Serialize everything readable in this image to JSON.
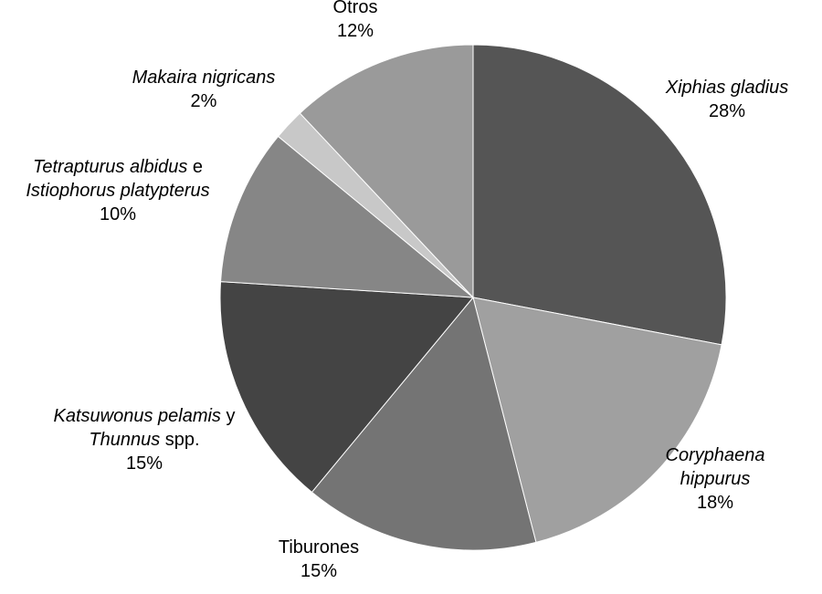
{
  "chart_data": {
    "type": "pie",
    "title": "",
    "start_angle_deg": 0,
    "direction": "clockwise",
    "slices": [
      {
        "label": "Xiphias gladius",
        "value": 28,
        "value_label": "28%",
        "color": "#555555",
        "label_parts": [
          [
            {
              "text": "Xiphias gladius",
              "italic": true
            }
          ]
        ]
      },
      {
        "label": "Coryphaena hippurus",
        "value": 18,
        "value_label": "18%",
        "color": "#a0a0a0",
        "label_parts": [
          [
            {
              "text": "Coryphaena",
              "italic": true
            }
          ],
          [
            {
              "text": "hippurus",
              "italic": true
            }
          ]
        ]
      },
      {
        "label": "Tiburones",
        "value": 15,
        "value_label": "15%",
        "color": "#747474",
        "label_parts": [
          [
            {
              "text": "Tiburones",
              "italic": false
            }
          ]
        ]
      },
      {
        "label": "Katsuwonus pelamis y Thunnus spp.",
        "value": 15,
        "value_label": "15%",
        "color": "#444444",
        "label_parts": [
          [
            {
              "text": "Katsuwonus pelamis",
              "italic": true
            },
            {
              "text": " y",
              "italic": false
            }
          ],
          [
            {
              "text": "Thunnus",
              "italic": true
            },
            {
              "text": " spp.",
              "italic": false
            }
          ]
        ]
      },
      {
        "label": "Tetrapturus albidus e Istiophorus platypterus",
        "value": 10,
        "value_label": "10%",
        "color": "#868686",
        "label_parts": [
          [
            {
              "text": "Tetrapturus albidus",
              "italic": true
            },
            {
              "text": " e",
              "italic": false
            }
          ],
          [
            {
              "text": "Istiophorus platypterus",
              "italic": true
            }
          ]
        ]
      },
      {
        "label": "Makaira nigricans",
        "value": 2,
        "value_label": "2%",
        "color": "#c8c8c8",
        "label_parts": [
          [
            {
              "text": "Makaira nigricans",
              "italic": true
            }
          ]
        ]
      },
      {
        "label": "Otros",
        "value": 12,
        "value_label": "12%",
        "color": "#9a9a9a",
        "label_parts": [
          [
            {
              "text": "Otros",
              "italic": false
            }
          ]
        ]
      }
    ]
  }
}
